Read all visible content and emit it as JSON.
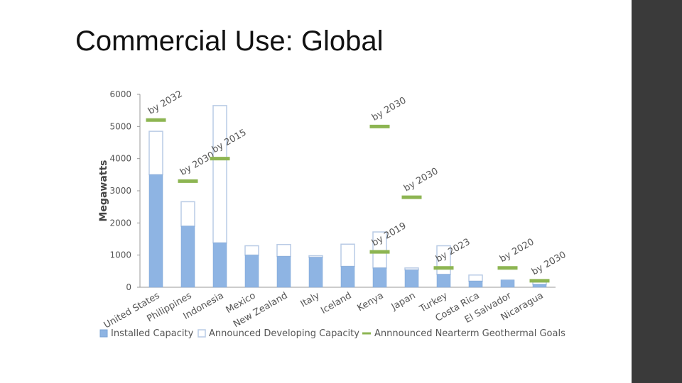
{
  "slide": {
    "title": "Commercial Use: Global"
  },
  "colors": {
    "installed": "#8eb4e3",
    "installed_edge": "#7aa3d6",
    "developing_edge": "#b9cbe5",
    "goal": "#8db552",
    "accent_bar": "#3a3a3a"
  },
  "chart_data": {
    "type": "bar",
    "title": "",
    "xlabel": "",
    "ylabel": "Megawatts",
    "ylim": [
      0,
      6000
    ],
    "yticks": [
      0,
      1000,
      2000,
      3000,
      4000,
      5000,
      6000
    ],
    "categories": [
      "United States",
      "Philippines",
      "Indonesia",
      "Mexico",
      "New Zealand",
      "Italy",
      "Iceland",
      "Kenya",
      "Japan",
      "Turkey",
      "Costa Rica",
      "El Salvador",
      "Nicaragua"
    ],
    "series": [
      {
        "name": "Installed Capacity",
        "stack": "total",
        "values": [
          3500,
          1900,
          1380,
          1000,
          960,
          930,
          650,
          600,
          540,
          400,
          190,
          230,
          90
        ]
      },
      {
        "name": "Announced Developing Capacity",
        "stack": "total",
        "values": [
          1350,
          760,
          4270,
          290,
          370,
          50,
          690,
          1120,
          60,
          890,
          190,
          0,
          70
        ]
      },
      {
        "name": "Annnounced Nearterm Geothermal Goals",
        "type": "marker",
        "values": [
          5200,
          3300,
          4000,
          null,
          null,
          null,
          null,
          5000,
          null,
          null,
          null,
          null,
          null
        ]
      }
    ],
    "goal_markers": [
      {
        "category": "United States",
        "value": 5200,
        "label": "by 2032"
      },
      {
        "category": "Philippines",
        "value": 3300,
        "label": "by 2030"
      },
      {
        "category": "Indonesia",
        "value": 4000,
        "label": "by 2015"
      },
      {
        "category": "Kenya",
        "value": 5000,
        "label": "by 2030"
      },
      {
        "category": "Kenya",
        "value": 1100,
        "label": "by 2019"
      },
      {
        "category": "Japan",
        "value": 2800,
        "label": "by 2030"
      },
      {
        "category": "Turkey",
        "value": 600,
        "label": "by 2023"
      },
      {
        "category": "El Salvador",
        "value": 600,
        "label": "by 2020"
      },
      {
        "category": "Nicaragua",
        "value": 200,
        "label": "by 2030"
      }
    ],
    "legend": [
      "Installed Capacity",
      "Announced Developing Capacity",
      "Annnounced Nearterm Geothermal Goals"
    ],
    "legend_position": "bottom"
  }
}
